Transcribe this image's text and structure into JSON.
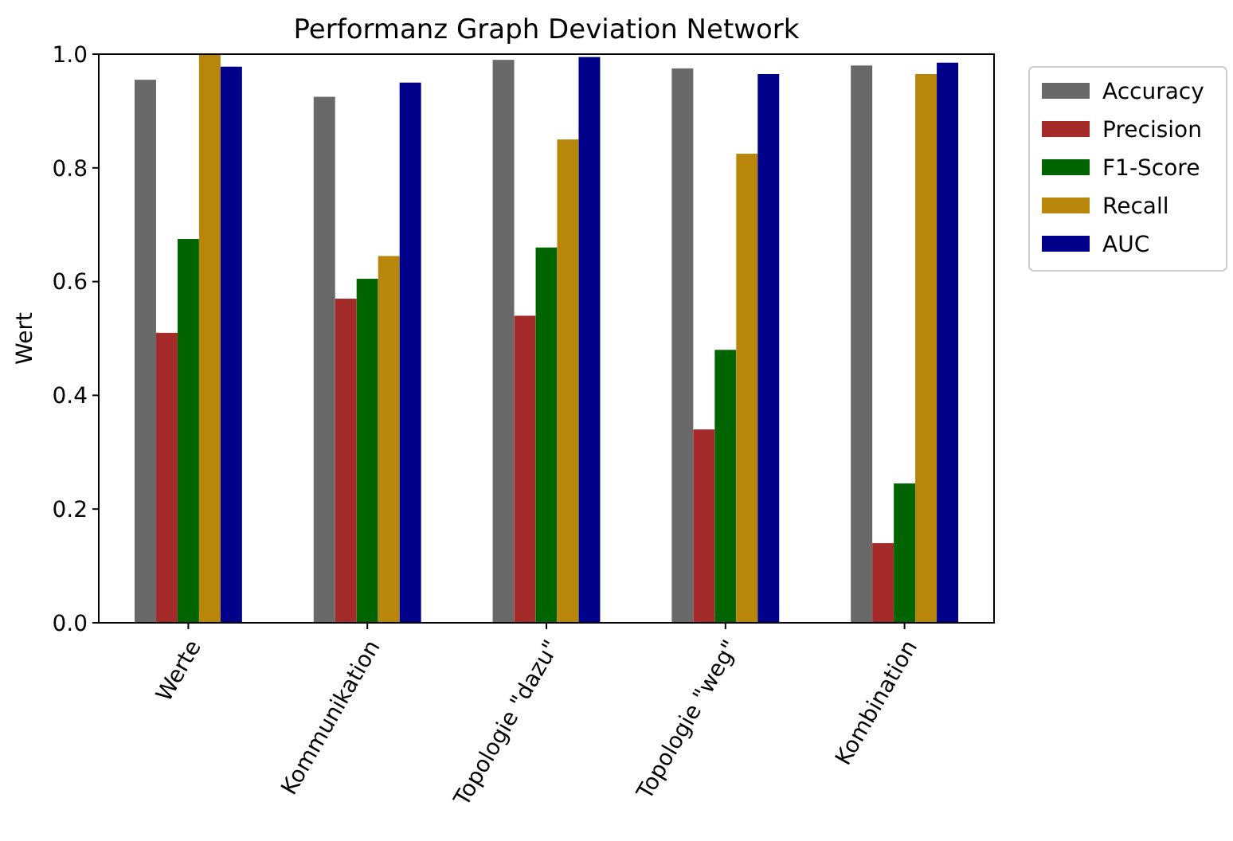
{
  "chart_data": {
    "type": "bar",
    "title": "Performanz Graph Deviation Network",
    "ylabel": "Wert",
    "categories": [
      "Werte",
      "Kommunikation",
      "Topologie \"dazu\"",
      "Topologie \"weg\"",
      "Kombination"
    ],
    "series": [
      {
        "name": "Accuracy",
        "color": "#696969",
        "values": [
          0.955,
          0.925,
          0.99,
          0.975,
          0.98
        ]
      },
      {
        "name": "Precision",
        "color": "#a52a2a",
        "values": [
          0.51,
          0.57,
          0.54,
          0.34,
          0.14
        ]
      },
      {
        "name": "F1-Score",
        "color": "#006400",
        "values": [
          0.675,
          0.605,
          0.66,
          0.48,
          0.245
        ]
      },
      {
        "name": "Recall",
        "color": "#b8860b",
        "values": [
          1.0,
          0.645,
          0.85,
          0.825,
          0.965
        ]
      },
      {
        "name": "AUC",
        "color": "#00008b",
        "values": [
          0.978,
          0.95,
          0.995,
          0.965,
          0.985
        ]
      }
    ],
    "ylim": [
      0,
      1
    ],
    "yticks": [
      {
        "value": 0,
        "label": "0.0"
      },
      {
        "value": 0.2,
        "label": "0.2"
      },
      {
        "value": 0.4,
        "label": "0.4"
      },
      {
        "value": 0.6,
        "label": "0.6"
      },
      {
        "value": 0.8,
        "label": "0.8"
      },
      {
        "value": 1,
        "label": "1.0"
      }
    ],
    "grid": false,
    "legend": "top right"
  }
}
